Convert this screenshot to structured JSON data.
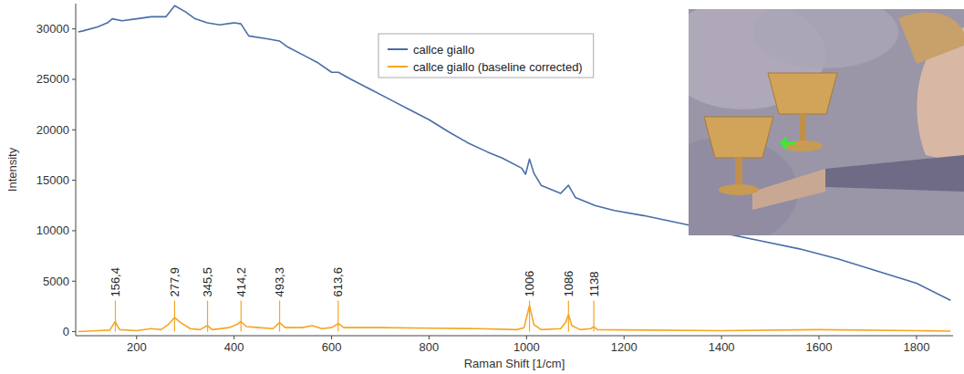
{
  "chart_data": {
    "type": "line",
    "x_label": "Raman Shift [1/cm]",
    "y_label": "Intensity",
    "xlim": [
      75,
      1875
    ],
    "ylim": [
      -400,
      32500
    ],
    "xticks": [
      200,
      400,
      600,
      800,
      1000,
      1200,
      1400,
      1600,
      1800
    ],
    "yticks": [
      0,
      5000,
      10000,
      15000,
      20000,
      25000,
      30000
    ],
    "grid": false,
    "legend": "top",
    "series": [
      {
        "name": "callce giallo",
        "color": "#4a6da7",
        "x": [
          80,
          90,
          120,
          140,
          150,
          170,
          200,
          230,
          260,
          278,
          300,
          320,
          345,
          370,
          400,
          414,
          430,
          470,
          493,
          510,
          550,
          570,
          600,
          614,
          640,
          680,
          720,
          760,
          800,
          840,
          880,
          920,
          950,
          990,
          998,
          1006,
          1015,
          1030,
          1070,
          1086,
          1100,
          1130,
          1140,
          1180,
          1240,
          1320,
          1400,
          1480,
          1560,
          1640,
          1720,
          1800,
          1870
        ],
        "values": [
          29700,
          29800,
          30200,
          30600,
          31000,
          30800,
          31000,
          31200,
          31200,
          32300,
          31700,
          31000,
          30600,
          30400,
          30600,
          30500,
          29300,
          29000,
          28800,
          28200,
          27200,
          26700,
          25700,
          25700,
          25000,
          24000,
          23000,
          22000,
          21000,
          19800,
          18700,
          17800,
          17200,
          16200,
          15600,
          17100,
          15700,
          14500,
          13700,
          14500,
          13300,
          12700,
          12500,
          12000,
          11500,
          10700,
          9800,
          9000,
          8200,
          7200,
          6000,
          4800,
          3100
        ]
      },
      {
        "name": "callce giallo (baseline corrected)",
        "color": "#f5a623",
        "x": [
          80,
          120,
          145,
          156,
          165,
          200,
          230,
          250,
          265,
          278,
          290,
          310,
          330,
          345,
          355,
          390,
          405,
          414,
          425,
          450,
          480,
          493,
          505,
          540,
          560,
          580,
          600,
          614,
          625,
          700,
          800,
          900,
          980,
          995,
          1006,
          1015,
          1030,
          1070,
          1080,
          1086,
          1093,
          1110,
          1132,
          1138,
          1145,
          1250,
          1400,
          1600,
          1800,
          1870
        ],
        "values": [
          0,
          100,
          150,
          1000,
          200,
          100,
          300,
          200,
          700,
          1400,
          900,
          300,
          200,
          600,
          200,
          400,
          700,
          1000,
          500,
          400,
          300,
          900,
          400,
          400,
          600,
          300,
          400,
          800,
          400,
          400,
          350,
          300,
          200,
          400,
          2600,
          700,
          200,
          300,
          900,
          1700,
          600,
          200,
          300,
          500,
          200,
          150,
          100,
          200,
          100,
          50
        ]
      }
    ],
    "annotations": [
      {
        "x": 156.4,
        "label": "156,4"
      },
      {
        "x": 277.9,
        "label": "277,9"
      },
      {
        "x": 345.5,
        "label": "345,5"
      },
      {
        "x": 414.2,
        "label": "414,2"
      },
      {
        "x": 493.3,
        "label": "493,3"
      },
      {
        "x": 613.6,
        "label": "613,6"
      },
      {
        "x": 1006,
        "label": "1006"
      },
      {
        "x": 1086,
        "label": "1086"
      },
      {
        "x": 1138,
        "label": "1138"
      }
    ]
  }
}
